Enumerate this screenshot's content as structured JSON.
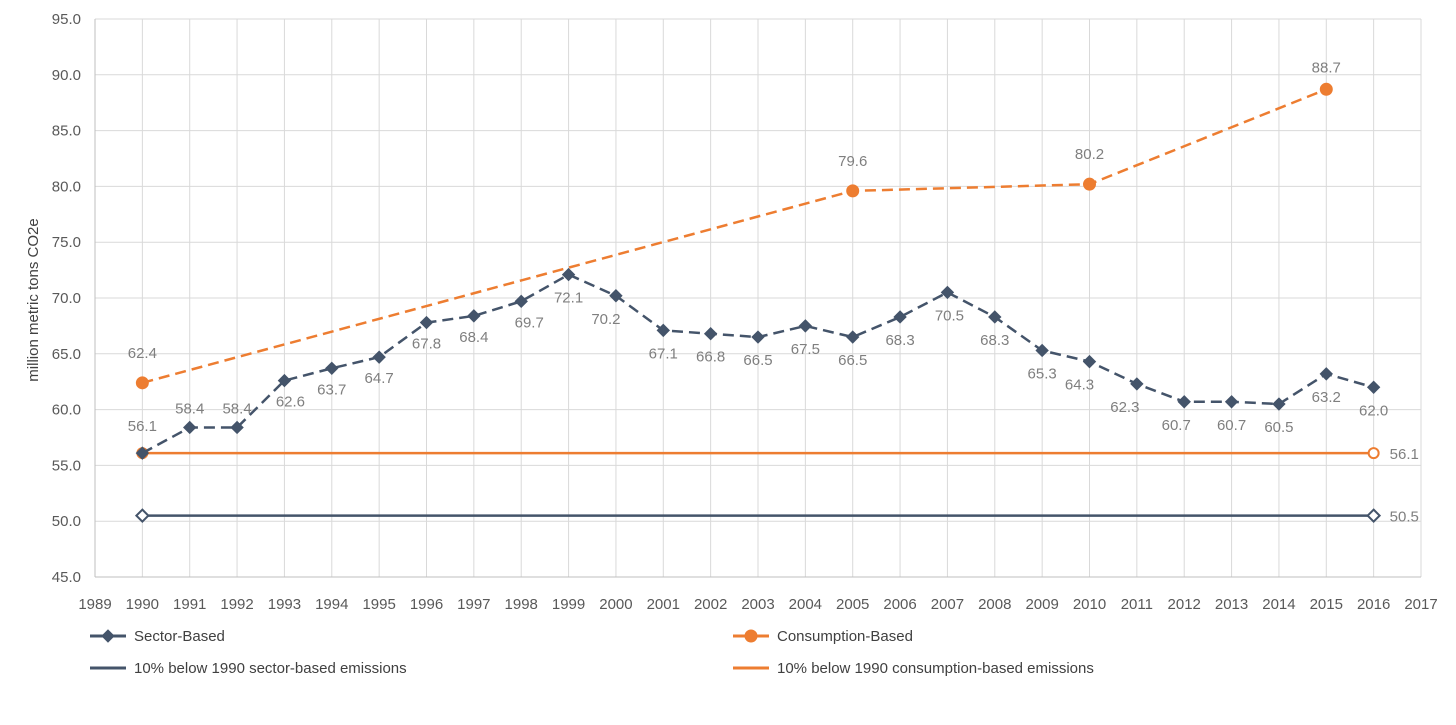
{
  "chart_data": {
    "type": "line",
    "ylabel": "million metric tons CO2e",
    "xlim": [
      1989,
      2017
    ],
    "ylim": [
      45,
      95
    ],
    "x_ticks": [
      1989,
      1990,
      1991,
      1992,
      1993,
      1994,
      1995,
      1996,
      1997,
      1998,
      1999,
      2000,
      2001,
      2002,
      2003,
      2004,
      2005,
      2006,
      2007,
      2008,
      2009,
      2010,
      2011,
      2012,
      2013,
      2014,
      2015,
      2016,
      2017
    ],
    "y_ticks": [
      "45.0",
      "50.0",
      "55.0",
      "60.0",
      "65.0",
      "70.0",
      "75.0",
      "80.0",
      "85.0",
      "90.0",
      "95.0"
    ],
    "grid": true,
    "legend_position": "bottom",
    "series": [
      {
        "name": "Sector-Based",
        "color": "#44546a",
        "marker": "diamond",
        "dash": true,
        "x": [
          1990,
          1991,
          1992,
          1993,
          1994,
          1995,
          1996,
          1997,
          1998,
          1999,
          2000,
          2001,
          2002,
          2003,
          2004,
          2005,
          2006,
          2007,
          2008,
          2009,
          2010,
          2011,
          2012,
          2013,
          2014,
          2015,
          2016
        ],
        "values": [
          56.1,
          58.4,
          58.4,
          62.6,
          63.7,
          64.7,
          67.8,
          68.4,
          69.7,
          72.1,
          70.2,
          67.1,
          66.8,
          66.5,
          67.5,
          66.5,
          68.3,
          70.5,
          68.3,
          65.3,
          64.3,
          62.3,
          60.7,
          60.7,
          60.5,
          63.2,
          62.0
        ],
        "labels": [
          "56.1",
          "58.4",
          "58.4",
          "62.6",
          "63.7",
          "64.7",
          "67.8",
          "68.4",
          "69.7",
          "72.1",
          "70.2",
          "67.1",
          "66.8",
          "66.5",
          "67.5",
          "66.5",
          "68.3",
          "70.5",
          "68.3",
          "65.3",
          "64.3",
          "62.3",
          "60.7",
          "60.7",
          "60.5",
          "63.2",
          "62.0"
        ]
      },
      {
        "name": "Consumption-Based",
        "color": "#ed7d31",
        "marker": "circle",
        "dash": true,
        "x": [
          1990,
          2005,
          2010,
          2015
        ],
        "values": [
          62.4,
          79.6,
          80.2,
          88.7
        ],
        "labels": [
          "62.4",
          "79.6",
          "80.2",
          "88.7"
        ]
      },
      {
        "name": "10% below 1990 sector-based emissions",
        "color": "#44546a",
        "marker": "open-diamond",
        "dash": false,
        "x": [
          1990,
          2016
        ],
        "values": [
          50.5,
          50.5
        ],
        "labels": [
          "",
          "50.5"
        ]
      },
      {
        "name": "10% below 1990 consumption-based emissions",
        "color": "#ed7d31",
        "marker": "open-circle",
        "dash": false,
        "x": [
          1990,
          2016
        ],
        "values": [
          56.1,
          56.1
        ],
        "labels": [
          "",
          "56.1"
        ]
      }
    ]
  }
}
